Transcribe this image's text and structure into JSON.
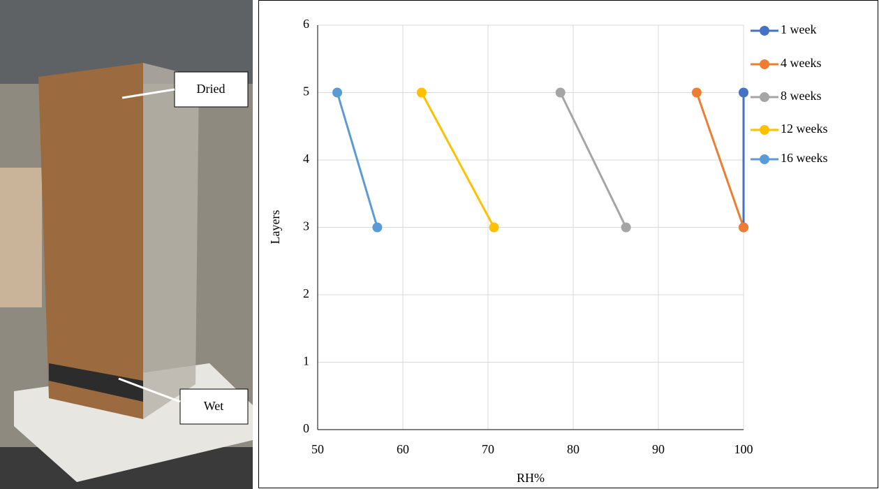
{
  "photo": {
    "labels": [
      "Dried",
      "Wet"
    ]
  },
  "chart_data": {
    "type": "line",
    "x_label": "RH%",
    "y_label": "Layers",
    "xlim": [
      50,
      100
    ],
    "xticks": [
      50,
      60,
      70,
      80,
      90,
      100
    ],
    "ylim": [
      0,
      6
    ],
    "yticks": [
      0,
      1,
      2,
      3,
      4,
      5,
      6
    ],
    "grid": true,
    "legend": "right",
    "series": [
      {
        "name": "1 week",
        "color": "#4472c4",
        "x": [
          100,
          100
        ],
        "values": [
          5,
          3
        ]
      },
      {
        "name": "4 weeks",
        "color": "#ed7d31",
        "x": [
          94.5,
          100
        ],
        "values": [
          5,
          3
        ]
      },
      {
        "name": "8 weeks",
        "color": "#a5a5a5",
        "x": [
          78.5,
          86.2
        ],
        "values": [
          5,
          3
        ]
      },
      {
        "name": "12 weeks",
        "color": "#ffc000",
        "x": [
          62.2,
          70.7
        ],
        "values": [
          5,
          3
        ]
      },
      {
        "name": "16 weeks",
        "color": "#5b9bd5",
        "x": [
          52.3,
          57
        ],
        "values": [
          5,
          3
        ]
      }
    ]
  }
}
